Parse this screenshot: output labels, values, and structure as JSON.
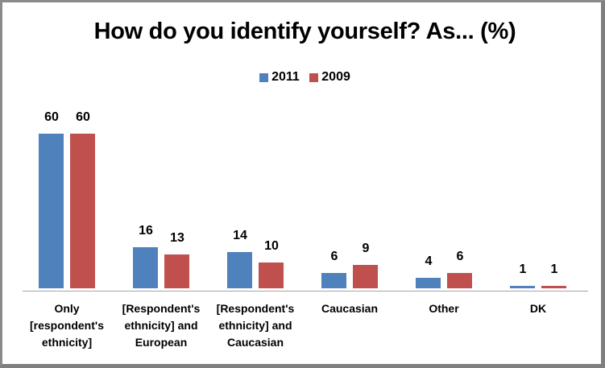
{
  "chart_data": {
    "type": "bar",
    "title": "How do you identify yourself? As... (%)",
    "xlabel": "",
    "ylabel": "",
    "ylim": [
      0,
      60
    ],
    "grid": false,
    "legend_position": "top",
    "categories": [
      "Only [respondent's ethnicity]",
      "[Respondent's ethnicity] and European",
      "[Respondent's ethnicity] and Caucasian",
      "Caucasian",
      "Other",
      "DK"
    ],
    "series": [
      {
        "name": "2011",
        "color": "#4f81bd",
        "values": [
          60,
          16,
          14,
          6,
          4,
          1
        ]
      },
      {
        "name": "2009",
        "color": "#c0504d",
        "values": [
          60,
          13,
          10,
          9,
          6,
          1
        ]
      }
    ]
  },
  "labels": {
    "cat0": [
      "Only",
      "[respondent's",
      "ethnicity]"
    ],
    "cat1": [
      "[Respondent's",
      "ethnicity] and",
      "European"
    ],
    "cat2": [
      "[Respondent's",
      "ethnicity] and",
      "Caucasian"
    ],
    "cat3": [
      "Caucasian"
    ],
    "cat4": [
      "Other"
    ],
    "cat5": [
      "DK"
    ]
  }
}
